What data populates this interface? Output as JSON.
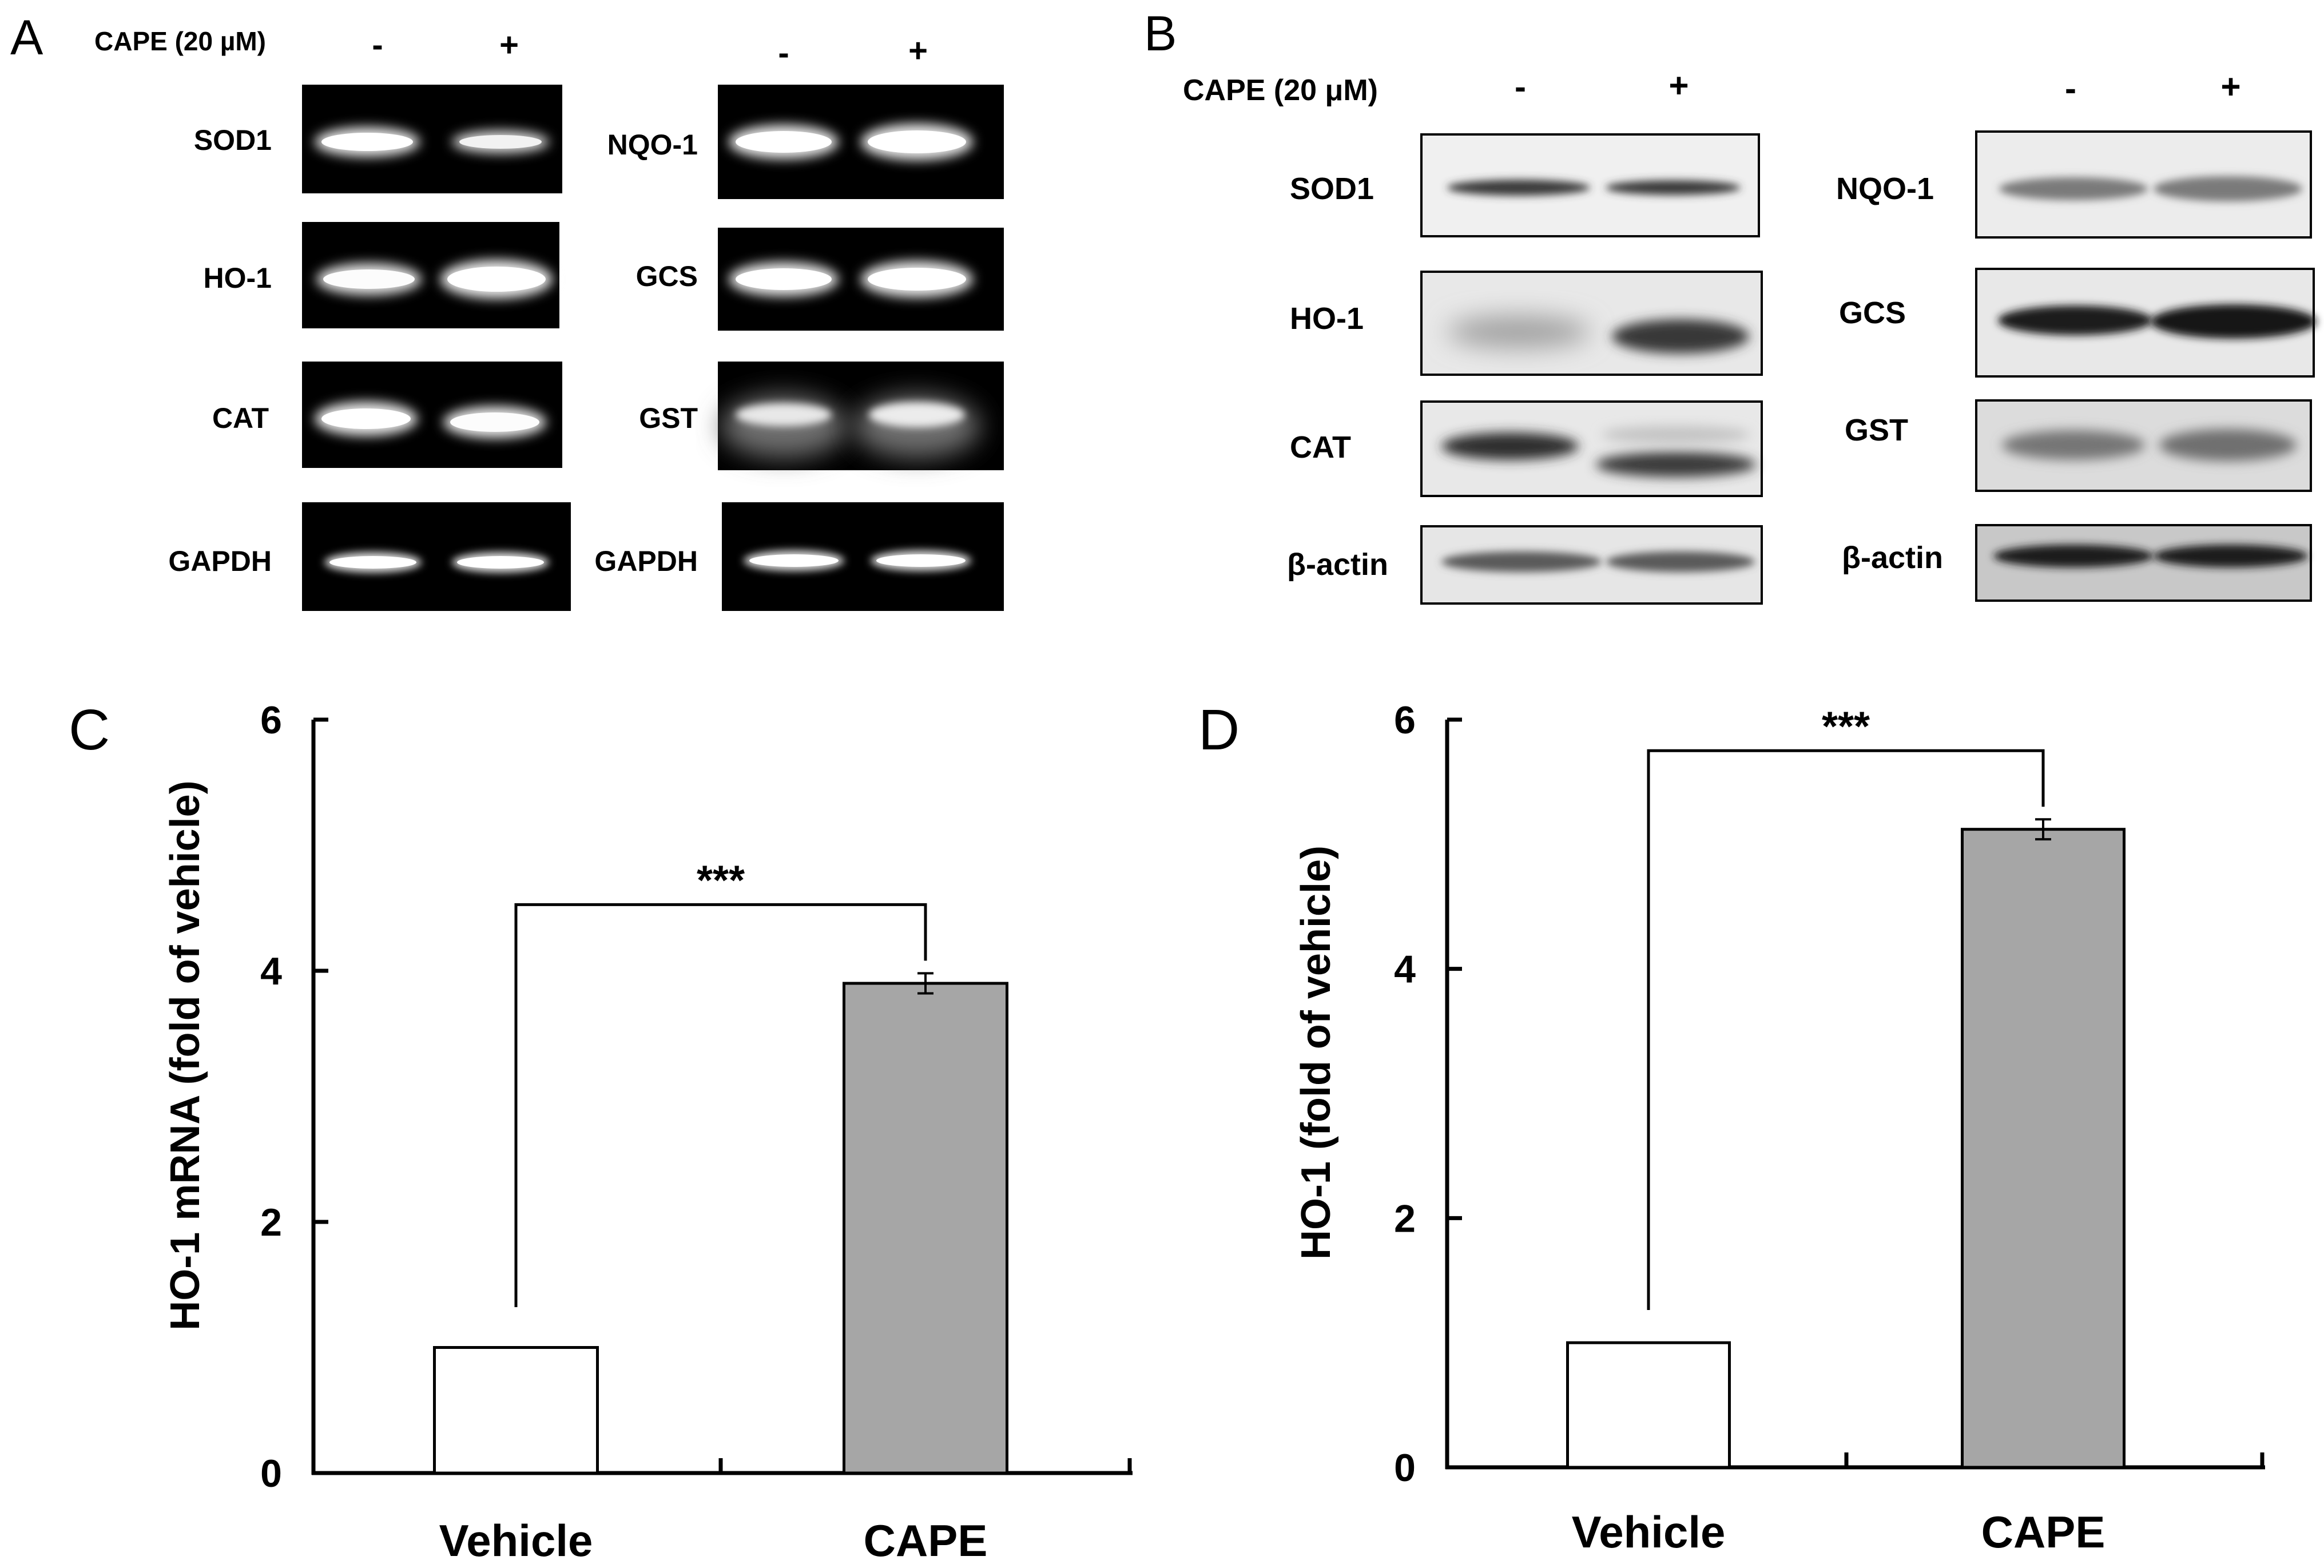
{
  "panel_letters": {
    "a": "A",
    "b": "B",
    "c": "C",
    "d": "D"
  },
  "gels": {
    "a": {
      "treatment_label": "CAPE (20 µM)",
      "minus": "-",
      "plus": "+",
      "left_labels": [
        "SOD1",
        "HO-1",
        "CAT",
        "GAPDH"
      ],
      "right_labels": [
        "NQO-1",
        "GCS",
        "GST",
        "GAPDH"
      ]
    },
    "b": {
      "treatment_label": "CAPE (20 μM)",
      "minus": "-",
      "plus": "+",
      "left_labels": [
        "SOD1",
        "HO-1",
        "CAT",
        "β-actin"
      ],
      "right_labels": [
        "NQO-1",
        "GCS",
        "GST",
        "β-actin"
      ]
    }
  },
  "chart_data": [
    {
      "type": "bar",
      "panel": "C",
      "categories": [
        "Vehicle",
        "CAPE"
      ],
      "values": [
        1.0,
        3.9
      ],
      "errors": [
        0,
        0.08
      ],
      "colors": [
        "#ffffff",
        "#a6a6a6"
      ],
      "ylabel": "HO-1 mRNA (fold of vehicle)",
      "ylim": [
        0,
        6
      ],
      "yticks": [
        "0",
        "2",
        "4",
        "6"
      ],
      "significance": "***",
      "grid": false
    },
    {
      "type": "bar",
      "panel": "D",
      "categories": [
        "Vehicle",
        "CAPE"
      ],
      "values": [
        1.0,
        5.12
      ],
      "errors": [
        0,
        0.08
      ],
      "colors": [
        "#ffffff",
        "#a6a6a6"
      ],
      "ylabel": "HO-1 (fold of vehicle)",
      "ylim": [
        0,
        6
      ],
      "yticks": [
        "0",
        "2",
        "4",
        "6"
      ],
      "significance": "***",
      "grid": false
    }
  ]
}
